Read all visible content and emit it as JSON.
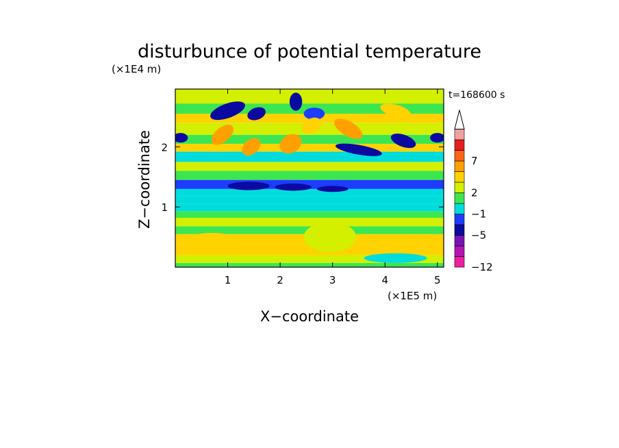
{
  "chart_data": {
    "type": "heatmap",
    "title": "disturbunce of potential temperature",
    "time_label": "t=168600 s",
    "xlabel": "X−coordinate",
    "ylabel": "Z−coordinate",
    "x_scale_label": "(×1E5 m)",
    "y_scale_label": "(×1E4 m)",
    "xlim": [
      0,
      5.12
    ],
    "ylim": [
      0,
      2.96
    ],
    "x_ticks": [
      1,
      2,
      3,
      4,
      5
    ],
    "y_ticks": [
      1,
      2
    ],
    "x_tick_labels": [
      "1",
      "2",
      "3",
      "4",
      "5"
    ],
    "y_tick_labels": [
      "1",
      "2"
    ],
    "colorbar": {
      "levels": [
        -12,
        -10,
        -8,
        -5,
        -3,
        -1,
        1,
        2,
        3,
        5,
        7,
        9,
        11
      ],
      "labels": [
        {
          "value": -12,
          "text": "−12"
        },
        {
          "value": -5,
          "text": "−5"
        },
        {
          "value": -1,
          "text": "−1"
        },
        {
          "value": 2,
          "text": "2"
        },
        {
          "value": 7,
          "text": "7"
        }
      ],
      "colors": [
        "#f01ea0",
        "#b414b4",
        "#7814b4",
        "#0a0aa0",
        "#1e3cff",
        "#00dcdc",
        "#3ce650",
        "#d2f000",
        "#ffd200",
        "#ffa000",
        "#ff6414",
        "#e61e1e",
        "#f0a0a0"
      ],
      "extend": "max"
    },
    "bands": [
      {
        "z": [
          0.0,
          0.07
        ],
        "value": 1
      },
      {
        "z": [
          0.07,
          0.2
        ],
        "value": 2.5
      },
      {
        "z": [
          0.2,
          0.38
        ],
        "value": 4
      },
      {
        "z": [
          0.38,
          0.55
        ],
        "value": 3
      },
      {
        "z": [
          0.55,
          0.68
        ],
        "value": 1
      },
      {
        "z": [
          0.68,
          0.82
        ],
        "value": 2.5
      },
      {
        "z": [
          0.82,
          0.93
        ],
        "value": 1.5
      },
      {
        "z": [
          0.93,
          1.05
        ],
        "value": 0
      },
      {
        "z": [
          1.05,
          1.18
        ],
        "value": -0.5
      },
      {
        "z": [
          1.18,
          1.3
        ],
        "value": 0
      },
      {
        "z": [
          1.3,
          1.45
        ],
        "value": -2
      },
      {
        "z": [
          1.45,
          1.6
        ],
        "value": 1
      },
      {
        "z": [
          1.6,
          1.75
        ],
        "value": 2
      },
      {
        "z": [
          1.75,
          1.92
        ],
        "value": 0
      },
      {
        "z": [
          1.92,
          2.05
        ],
        "value": 3
      },
      {
        "z": [
          2.05,
          2.2
        ],
        "value": 1
      },
      {
        "z": [
          2.2,
          2.4
        ],
        "value": 2
      },
      {
        "z": [
          2.4,
          2.55
        ],
        "value": 3
      },
      {
        "z": [
          2.55,
          2.72
        ],
        "value": 1
      },
      {
        "z": [
          2.72,
          2.96
        ],
        "value": 2
      }
    ],
    "features": [
      {
        "x": 1.0,
        "z": 2.6,
        "rx": 0.35,
        "rz": 0.12,
        "angle": 20,
        "value": -4
      },
      {
        "x": 1.55,
        "z": 2.55,
        "rx": 0.18,
        "rz": 0.1,
        "angle": 20,
        "value": -4
      },
      {
        "x": 2.3,
        "z": 2.75,
        "rx": 0.12,
        "rz": 0.15,
        "angle": 0,
        "value": -4
      },
      {
        "x": 2.65,
        "z": 2.55,
        "rx": 0.2,
        "rz": 0.1,
        "angle": 0,
        "value": -2
      },
      {
        "x": 0.1,
        "z": 2.15,
        "rx": 0.14,
        "rz": 0.08,
        "angle": 0,
        "value": -4
      },
      {
        "x": 5.0,
        "z": 2.15,
        "rx": 0.14,
        "rz": 0.08,
        "angle": 0,
        "value": -4
      },
      {
        "x": 3.5,
        "z": 1.95,
        "rx": 0.45,
        "rz": 0.08,
        "angle": -10,
        "value": -4
      },
      {
        "x": 4.35,
        "z": 2.1,
        "rx": 0.25,
        "rz": 0.1,
        "angle": -20,
        "value": -4
      },
      {
        "x": 1.4,
        "z": 1.35,
        "rx": 0.4,
        "rz": 0.07,
        "angle": 0,
        "value": -4
      },
      {
        "x": 2.25,
        "z": 1.33,
        "rx": 0.35,
        "rz": 0.06,
        "angle": 0,
        "value": -4
      },
      {
        "x": 3.0,
        "z": 1.3,
        "rx": 0.3,
        "rz": 0.05,
        "angle": 0,
        "value": -4
      },
      {
        "x": 0.9,
        "z": 2.2,
        "rx": 0.25,
        "rz": 0.12,
        "angle": 40,
        "value": 6
      },
      {
        "x": 1.45,
        "z": 2.0,
        "rx": 0.2,
        "rz": 0.12,
        "angle": 40,
        "value": 6
      },
      {
        "x": 2.2,
        "z": 2.05,
        "rx": 0.22,
        "rz": 0.15,
        "angle": 30,
        "value": 6
      },
      {
        "x": 2.6,
        "z": 2.35,
        "rx": 0.2,
        "rz": 0.12,
        "angle": 30,
        "value": 4
      },
      {
        "x": 3.3,
        "z": 2.3,
        "rx": 0.3,
        "rz": 0.12,
        "angle": -30,
        "value": 6
      },
      {
        "x": 4.2,
        "z": 2.6,
        "rx": 0.3,
        "rz": 0.1,
        "angle": -15,
        "value": 4
      },
      {
        "x": 2.95,
        "z": 0.5,
        "rx": 0.5,
        "rz": 0.25,
        "angle": 0,
        "value": 2
      },
      {
        "x": 0.7,
        "z": 0.45,
        "rx": 0.5,
        "rz": 0.12,
        "angle": 0,
        "value": 4
      },
      {
        "x": 4.2,
        "z": 0.15,
        "rx": 0.6,
        "rz": 0.08,
        "angle": 0,
        "value": 0
      }
    ],
    "grid": false
  }
}
